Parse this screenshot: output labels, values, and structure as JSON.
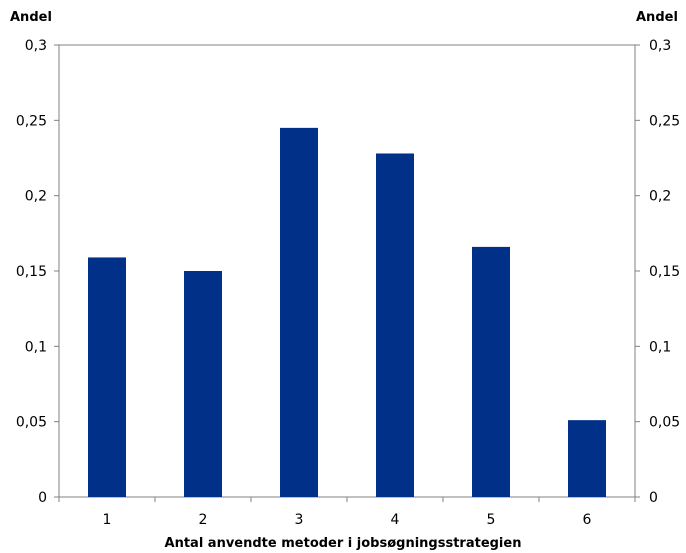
{
  "chart_data": {
    "type": "bar",
    "categories": [
      "1",
      "2",
      "3",
      "4",
      "5",
      "6"
    ],
    "values": [
      0.159,
      0.15,
      0.245,
      0.228,
      0.166,
      0.051
    ],
    "ylabel_left": "Andel",
    "ylabel_right": "Andel",
    "xlabel": "Antal anvendte metoder i jobsøgningsstrategien",
    "ylim": [
      0,
      0.3
    ],
    "yticks": [
      0,
      0.05,
      0.1,
      0.15,
      0.2,
      0.25,
      0.3
    ],
    "ytick_labels": [
      "0",
      "0,05",
      "0,1",
      "0,15",
      "0,2",
      "0,25",
      "0,3"
    ],
    "bar_color": "#003087",
    "grid": false,
    "legend": "none"
  }
}
